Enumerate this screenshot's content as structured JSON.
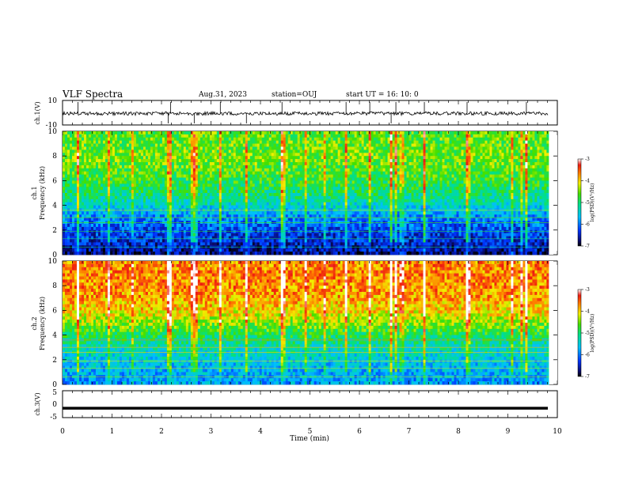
{
  "header": {
    "title": "VLF Spectra",
    "date": "Aug.31, 2023",
    "station": "station=OUJ",
    "start": "start UT =  16: 10: 0"
  },
  "chart_data": [
    {
      "type": "line",
      "name": "ch1-waveform",
      "ylabel": "ch.1(V)",
      "ylim": [
        -10,
        10
      ],
      "yticks": [
        "10",
        "-10"
      ],
      "xlim": [
        0,
        10
      ],
      "baseline": 0.5
    },
    {
      "type": "heatmap",
      "name": "ch1-spectrogram",
      "ylabel_top": "ch.1",
      "ylabel": "Frequency (kHz)",
      "ylim": [
        0,
        10
      ],
      "yticks": [
        "0",
        "2",
        "4",
        "6",
        "8",
        "10"
      ],
      "xlim": [
        0,
        9.83
      ],
      "colorbar": {
        "label": "log(PSD)(V²/Hz)",
        "range": [
          -7,
          -3
        ],
        "ticks": [
          "-3",
          "-4",
          "-5",
          "-6",
          "-7"
        ]
      },
      "profile": [
        {
          "f": 0,
          "v": -6.7
        },
        {
          "f": 1,
          "v": -6.4
        },
        {
          "f": 2,
          "v": -6.2
        },
        {
          "f": 3,
          "v": -5.9
        },
        {
          "f": 4,
          "v": -5.4
        },
        {
          "f": 5,
          "v": -5.0
        },
        {
          "f": 6,
          "v": -4.8
        },
        {
          "f": 7,
          "v": -4.6
        },
        {
          "f": 8,
          "v": -4.5
        },
        {
          "f": 9,
          "v": -4.6
        },
        {
          "f": 10,
          "v": -4.6
        }
      ]
    },
    {
      "type": "heatmap",
      "name": "ch2-spectrogram",
      "ylabel_top": "ch.2",
      "ylabel": "Frequency (kHz)",
      "ylim": [
        0,
        10
      ],
      "yticks": [
        "0",
        "2",
        "4",
        "6",
        "8",
        "10"
      ],
      "xlim": [
        0,
        9.83
      ],
      "colorbar": {
        "label": "log(PSD)(V²/Hz)",
        "range": [
          -7,
          -3
        ],
        "ticks": [
          "-3",
          "-4",
          "-5",
          "-6",
          "-7"
        ]
      },
      "profile": [
        {
          "f": 0,
          "v": -5.8
        },
        {
          "f": 1,
          "v": -5.7
        },
        {
          "f": 2,
          "v": -5.5
        },
        {
          "f": 3,
          "v": -5.3
        },
        {
          "f": 4,
          "v": -4.9
        },
        {
          "f": 5,
          "v": -4.4
        },
        {
          "f": 6,
          "v": -4.0
        },
        {
          "f": 7,
          "v": -3.8
        },
        {
          "f": 8,
          "v": -3.7
        },
        {
          "f": 9,
          "v": -3.7
        },
        {
          "f": 10,
          "v": -3.7
        }
      ]
    },
    {
      "type": "line",
      "name": "ch3-waveform",
      "ylabel": "ch.3(V)",
      "ylim": [
        -5,
        5
      ],
      "yticks": [
        "5",
        "0",
        "-5"
      ],
      "xlim": [
        0,
        10
      ],
      "level": -1.5
    }
  ],
  "xaxis": {
    "label": "Time (min)",
    "ticks": [
      "0",
      "1",
      "2",
      "3",
      "4",
      "5",
      "6",
      "7",
      "8",
      "9",
      "10"
    ]
  }
}
